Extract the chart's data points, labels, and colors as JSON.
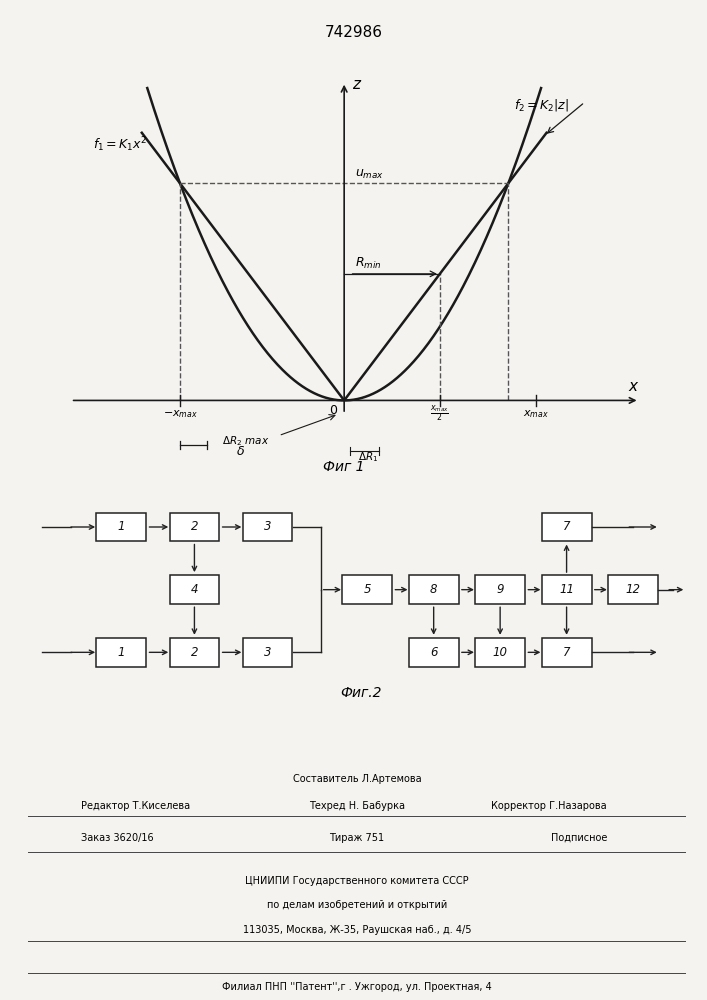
{
  "title": "742986",
  "fig1_caption": "Фиг 1",
  "fig2_caption": "Фиг.2",
  "bg_color": "#f5f3ef",
  "curve_color": "#1a1a1a",
  "axis_color": "#1a1a1a",
  "dashed_color": "#555555",
  "box_color": "#222222"
}
